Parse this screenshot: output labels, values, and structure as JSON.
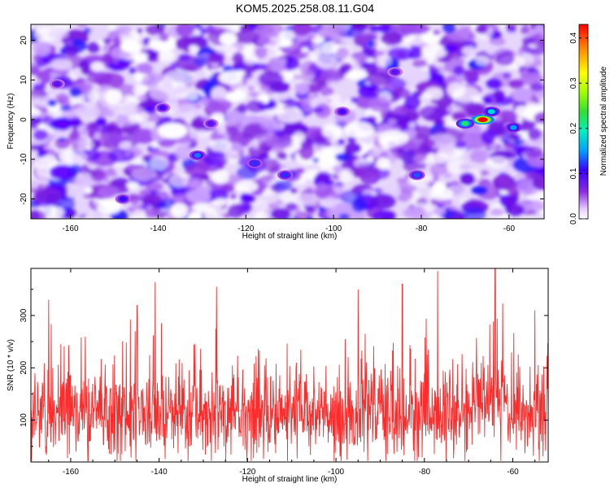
{
  "title": "KOM5.2025.258.08.11.G04",
  "chart_data": [
    {
      "type": "heatmap",
      "title": "",
      "xlabel": "Height of straight line (km)",
      "ylabel": "Frequency (Hz)",
      "xlim": [
        -169,
        -52
      ],
      "ylim": [
        -25,
        24
      ],
      "xticks": [
        -160,
        -140,
        -120,
        -100,
        -80,
        -60
      ],
      "yticks": [
        -20,
        -10,
        0,
        10,
        20
      ],
      "colorbar": {
        "label": "Normalized spectral amplitude",
        "range": [
          0.0,
          0.43
        ],
        "ticks": [
          "0.0",
          "0.1",
          "0.2",
          "0.3",
          "0.4"
        ]
      },
      "hotspots": [
        {
          "height_km": -66,
          "frequency_hz": 0,
          "amplitude": 0.42
        },
        {
          "height_km": -70,
          "frequency_hz": -1,
          "amplitude": 0.2
        },
        {
          "height_km": -64,
          "frequency_hz": 2,
          "amplitude": 0.16
        },
        {
          "height_km": -59,
          "frequency_hz": -2,
          "amplitude": 0.13
        },
        {
          "height_km": -131,
          "frequency_hz": -9,
          "amplitude": 0.12
        },
        {
          "height_km": -81,
          "frequency_hz": -14,
          "amplitude": 0.11
        },
        {
          "height_km": -111,
          "frequency_hz": -14,
          "amplitude": 0.1
        },
        {
          "height_km": -118,
          "frequency_hz": -11,
          "amplitude": 0.1
        },
        {
          "height_km": -148,
          "frequency_hz": -20,
          "amplitude": 0.09
        },
        {
          "height_km": -139,
          "frequency_hz": 3,
          "amplitude": 0.08
        },
        {
          "height_km": -98,
          "frequency_hz": 2,
          "amplitude": 0.08
        },
        {
          "height_km": -163,
          "frequency_hz": 9,
          "amplitude": 0.07
        },
        {
          "height_km": -128,
          "frequency_hz": -1,
          "amplitude": 0.07
        },
        {
          "height_km": -86,
          "frequency_hz": 12,
          "amplitude": 0.07
        }
      ]
    },
    {
      "type": "line",
      "title": "",
      "xlabel": "Height of straight line (km)",
      "ylabel": "SNR (10 * v/v)",
      "xlim": [
        -169,
        -52
      ],
      "ylim": [
        20,
        390
      ],
      "xticks": [
        -160,
        -140,
        -120,
        -100,
        -80,
        -60
      ],
      "yticks": [
        100,
        200,
        300
      ],
      "series": [
        {
          "name": "SNR",
          "color": "#ff2a2a",
          "x_start": -169,
          "x_end": -52,
          "baseline": 110,
          "noise_sd": 55,
          "peaks": [
            {
              "height_km": -77,
              "value": 385
            },
            {
              "height_km": -64,
              "value": 370
            },
            {
              "height_km": -127,
              "value": 355
            },
            {
              "height_km": -95,
              "value": 350
            },
            {
              "height_km": -85,
              "value": 360
            },
            {
              "height_km": -165,
              "value": 330
            },
            {
              "height_km": -145,
              "value": 320
            },
            {
              "height_km": -55,
              "value": 310
            }
          ]
        }
      ]
    }
  ],
  "colors": {
    "line": "#ff2a2a",
    "axis": "#000000",
    "grid": "#b0b0b0"
  }
}
